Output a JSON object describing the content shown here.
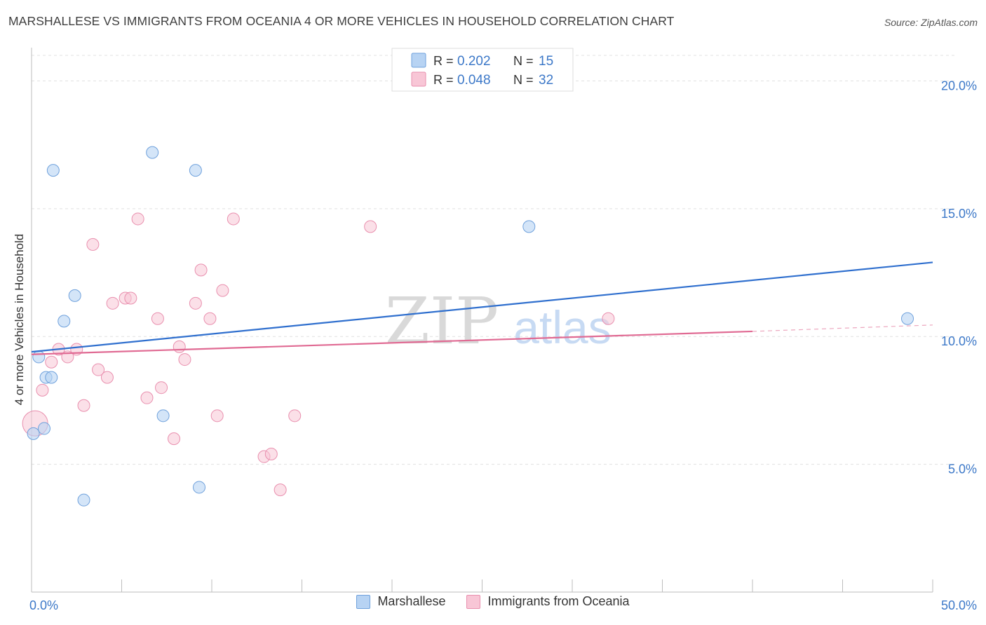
{
  "header": {
    "title": "MARSHALLESE VS IMMIGRANTS FROM OCEANIA 4 OR MORE VEHICLES IN HOUSEHOLD CORRELATION CHART",
    "source": "Source: ZipAtlas.com"
  },
  "colors": {
    "blue_line": "#2f6fce",
    "blue_fill": "#b7d3f3",
    "blue_stroke": "#6fa1dc",
    "pink_line": "#e06a93",
    "pink_fill": "#f8c6d6",
    "pink_stroke": "#e98fae",
    "axis_text": "#3c78c8",
    "grid": "#e0e0e0"
  },
  "legend": {
    "r_label": "R =",
    "n_label": "N =",
    "rows": [
      {
        "r": "0.202",
        "n": "15"
      },
      {
        "r": "0.048",
        "n": "32"
      }
    ]
  },
  "watermark": {
    "zip": "ZIP",
    "atlas": "atlas"
  },
  "chart_data": {
    "type": "scatter",
    "title": "MARSHALLESE VS IMMIGRANTS FROM OCEANIA 4 OR MORE VEHICLES IN HOUSEHOLD CORRELATION CHART",
    "xlabel": "",
    "ylabel": "4 or more Vehicles in Household",
    "xlim": [
      0,
      50
    ],
    "ylim": [
      0,
      21
    ],
    "x_tick_labels": [
      "0.0%",
      "50.0%"
    ],
    "y_ticks": [
      5,
      10,
      15,
      20
    ],
    "y_tick_labels": [
      "5.0%",
      "10.0%",
      "15.0%",
      "20.0%"
    ],
    "grid": "horizontal dashed",
    "legend_position": "top-center",
    "series": [
      {
        "name": "Marshallese",
        "r": 0.202,
        "n": 15,
        "points": [
          [
            0.1,
            6.2
          ],
          [
            0.4,
            9.2
          ],
          [
            0.7,
            6.4
          ],
          [
            0.8,
            8.4
          ],
          [
            1.1,
            8.4
          ],
          [
            1.2,
            16.5
          ],
          [
            1.8,
            10.6
          ],
          [
            2.4,
            11.6
          ],
          [
            2.9,
            3.6
          ],
          [
            6.7,
            17.2
          ],
          [
            7.3,
            6.9
          ],
          [
            9.1,
            16.5
          ],
          [
            9.3,
            4.1
          ],
          [
            27.6,
            14.3
          ],
          [
            48.6,
            10.7
          ]
        ],
        "trend": {
          "x": [
            0,
            50
          ],
          "y": [
            9.4,
            12.9
          ]
        }
      },
      {
        "name": "Immigrants from Oceania",
        "r": 0.048,
        "n": 32,
        "points": [
          [
            0.2,
            6.6
          ],
          [
            0.6,
            7.9
          ],
          [
            1.1,
            9.0
          ],
          [
            1.5,
            9.5
          ],
          [
            2.0,
            9.2
          ],
          [
            2.5,
            9.5
          ],
          [
            2.9,
            7.3
          ],
          [
            3.4,
            13.6
          ],
          [
            3.7,
            8.7
          ],
          [
            4.2,
            8.4
          ],
          [
            4.5,
            11.3
          ],
          [
            5.2,
            11.5
          ],
          [
            5.5,
            11.5
          ],
          [
            5.9,
            14.6
          ],
          [
            6.4,
            7.6
          ],
          [
            7.0,
            10.7
          ],
          [
            7.2,
            8.0
          ],
          [
            7.9,
            6.0
          ],
          [
            8.2,
            9.6
          ],
          [
            8.5,
            9.1
          ],
          [
            9.1,
            11.3
          ],
          [
            9.4,
            12.6
          ],
          [
            9.9,
            10.7
          ],
          [
            10.3,
            6.9
          ],
          [
            10.6,
            11.8
          ],
          [
            11.2,
            14.6
          ],
          [
            12.9,
            5.3
          ],
          [
            13.3,
            5.4
          ],
          [
            13.8,
            4.0
          ],
          [
            14.6,
            6.9
          ],
          [
            18.8,
            14.3
          ],
          [
            32.0,
            10.7
          ]
        ],
        "trend": {
          "x": [
            0,
            40
          ],
          "y": [
            9.3,
            10.2
          ]
        },
        "trend_dashed": {
          "x": [
            40,
            50
          ],
          "y": [
            10.2,
            10.45
          ]
        }
      }
    ]
  }
}
